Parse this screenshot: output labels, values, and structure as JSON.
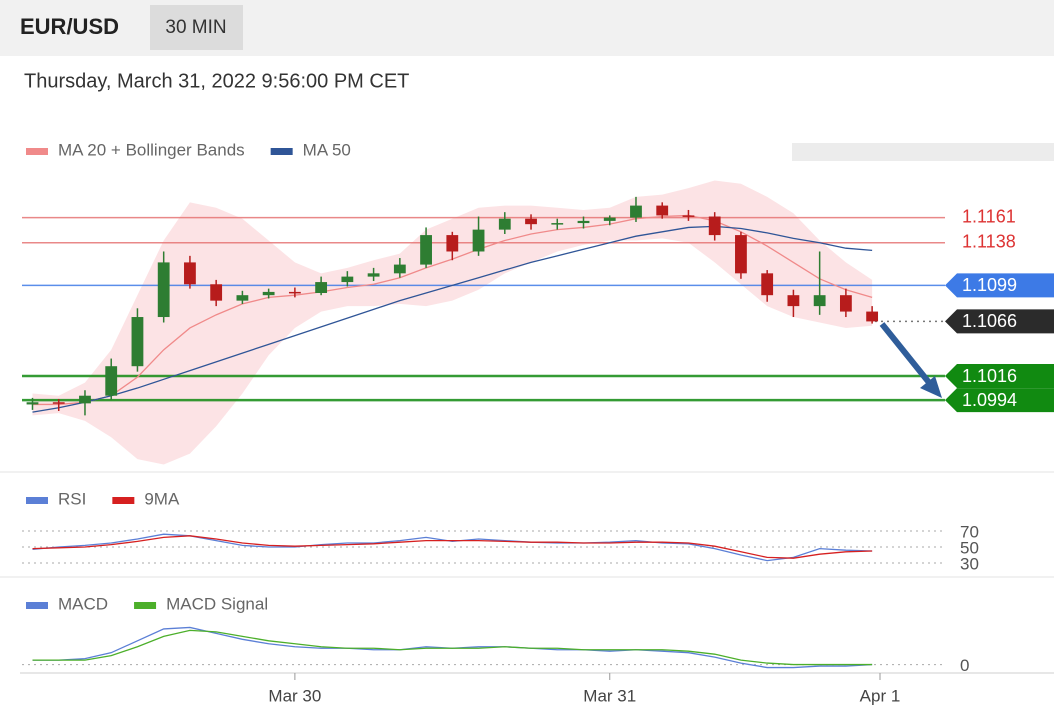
{
  "header": {
    "symbol": "EUR/USD",
    "timeframe": "30 MIN",
    "datetime": "Thursday, March 31, 2022 9:56:00 PM CET"
  },
  "chart_data": [
    {
      "type": "candlestick",
      "x": [
        -20,
        -18,
        -16,
        -14,
        -12,
        -10,
        -8,
        -6,
        -4,
        -2,
        0,
        2,
        4,
        6,
        8,
        10,
        12,
        14,
        16,
        18,
        20,
        22,
        24,
        26,
        28,
        30,
        32,
        34,
        36,
        38,
        40,
        42,
        44
      ],
      "xlim": [
        -20.8,
        44.6
      ],
      "ylim": [
        1.093,
        1.12
      ],
      "up_color": "#2e7d32",
      "down_color": "#b71c1c",
      "candles": [
        {
          "o": 1.099,
          "h": 1.0996,
          "l": 1.0985,
          "c": 1.0992
        },
        {
          "o": 1.0992,
          "h": 1.0995,
          "l": 1.0984,
          "c": 1.0991
        },
        {
          "o": 1.0991,
          "h": 1.1003,
          "l": 1.098,
          "c": 1.0998
        },
        {
          "o": 1.0998,
          "h": 1.1032,
          "l": 1.0994,
          "c": 1.1025
        },
        {
          "o": 1.1025,
          "h": 1.1078,
          "l": 1.102,
          "c": 1.107
        },
        {
          "o": 1.107,
          "h": 1.113,
          "l": 1.1065,
          "c": 1.112
        },
        {
          "o": 1.112,
          "h": 1.1126,
          "l": 1.1096,
          "c": 1.11
        },
        {
          "o": 1.11,
          "h": 1.1104,
          "l": 1.108,
          "c": 1.1085
        },
        {
          "o": 1.1085,
          "h": 1.1094,
          "l": 1.1082,
          "c": 1.109
        },
        {
          "o": 1.109,
          "h": 1.1096,
          "l": 1.1087,
          "c": 1.1093
        },
        {
          "o": 1.1093,
          "h": 1.1097,
          "l": 1.1088,
          "c": 1.1092
        },
        {
          "o": 1.1092,
          "h": 1.1107,
          "l": 1.109,
          "c": 1.1102
        },
        {
          "o": 1.1102,
          "h": 1.1112,
          "l": 1.1098,
          "c": 1.1107
        },
        {
          "o": 1.1107,
          "h": 1.1115,
          "l": 1.1103,
          "c": 1.111
        },
        {
          "o": 1.111,
          "h": 1.1124,
          "l": 1.1106,
          "c": 1.1118
        },
        {
          "o": 1.1118,
          "h": 1.1152,
          "l": 1.1115,
          "c": 1.1145
        },
        {
          "o": 1.1145,
          "h": 1.1148,
          "l": 1.1122,
          "c": 1.113
        },
        {
          "o": 1.113,
          "h": 1.1162,
          "l": 1.1126,
          "c": 1.115
        },
        {
          "o": 1.115,
          "h": 1.1166,
          "l": 1.1146,
          "c": 1.116
        },
        {
          "o": 1.116,
          "h": 1.1164,
          "l": 1.115,
          "c": 1.1155
        },
        {
          "o": 1.1155,
          "h": 1.116,
          "l": 1.115,
          "c": 1.1156
        },
        {
          "o": 1.1156,
          "h": 1.1162,
          "l": 1.1151,
          "c": 1.1158
        },
        {
          "o": 1.1158,
          "h": 1.1163,
          "l": 1.1154,
          "c": 1.1161
        },
        {
          "o": 1.1161,
          "h": 1.118,
          "l": 1.1157,
          "c": 1.1172
        },
        {
          "o": 1.1172,
          "h": 1.1175,
          "l": 1.116,
          "c": 1.1163
        },
        {
          "o": 1.1163,
          "h": 1.1168,
          "l": 1.1158,
          "c": 1.1162
        },
        {
          "o": 1.1162,
          "h": 1.1166,
          "l": 1.114,
          "c": 1.1145
        },
        {
          "o": 1.1145,
          "h": 1.1148,
          "l": 1.1105,
          "c": 1.111
        },
        {
          "o": 1.111,
          "h": 1.1113,
          "l": 1.1084,
          "c": 1.109
        },
        {
          "o": 1.109,
          "h": 1.1095,
          "l": 1.107,
          "c": 1.108
        },
        {
          "o": 1.108,
          "h": 1.113,
          "l": 1.1072,
          "c": 1.109
        },
        {
          "o": 1.109,
          "h": 1.1096,
          "l": 1.107,
          "c": 1.1075
        },
        {
          "o": 1.1075,
          "h": 1.108,
          "l": 1.1064,
          "c": 1.1066
        }
      ],
      "series": [
        {
          "name": "MA 20 + Bollinger Bands",
          "color": "#f08a8a",
          "band_color": "#fbd9dc",
          "values": [
            1.099,
            1.099,
            1.0992,
            1.0998,
            1.1015,
            1.104,
            1.106,
            1.1072,
            1.1082,
            1.1088,
            1.109,
            1.1093,
            1.1097,
            1.11,
            1.1106,
            1.1115,
            1.1123,
            1.1132,
            1.114,
            1.1146,
            1.115,
            1.1152,
            1.1155,
            1.116,
            1.1162,
            1.1163,
            1.1158,
            1.1148,
            1.1135,
            1.112,
            1.1105,
            1.1095,
            1.1088
          ],
          "upper": [
            1.1,
            1.0998,
            1.101,
            1.104,
            1.109,
            1.114,
            1.1175,
            1.117,
            1.116,
            1.114,
            1.112,
            1.111,
            1.1115,
            1.1122,
            1.1128,
            1.115,
            1.116,
            1.117,
            1.1172,
            1.1172,
            1.117,
            1.1168,
            1.117,
            1.118,
            1.1182,
            1.1188,
            1.1195,
            1.1192,
            1.118,
            1.1165,
            1.114,
            1.112,
            1.1104
          ],
          "lower": [
            1.098,
            1.0982,
            1.0975,
            1.096,
            1.094,
            1.0935,
            1.0945,
            1.097,
            1.1,
            1.1035,
            1.106,
            1.1075,
            1.108,
            1.108,
            1.1082,
            1.108,
            1.1085,
            1.1095,
            1.111,
            1.112,
            1.113,
            1.1136,
            1.114,
            1.114,
            1.1142,
            1.1138,
            1.112,
            1.11,
            1.108,
            1.107,
            1.1065,
            1.106,
            1.1062
          ]
        },
        {
          "name": "MA 50",
          "color": "#2f5597",
          "values": [
            1.0983,
            1.0987,
            1.0992,
            1.0998,
            1.1005,
            1.1013,
            1.1021,
            1.1029,
            1.1037,
            1.1045,
            1.1053,
            1.1061,
            1.1069,
            1.1077,
            1.1085,
            1.1092,
            1.1099,
            1.1106,
            1.1113,
            1.112,
            1.1126,
            1.1132,
            1.1138,
            1.1144,
            1.1148,
            1.1152,
            1.1153,
            1.1151,
            1.1147,
            1.1142,
            1.1138,
            1.1133,
            1.1131
          ]
        }
      ],
      "levels": [
        {
          "value": 1.1161,
          "color": "#e57373",
          "label_style": "text",
          "line": "solid"
        },
        {
          "value": 1.1138,
          "color": "#e57373",
          "label_style": "text",
          "line": "solid"
        },
        {
          "value": 1.1099,
          "color": "#3d7ae6",
          "label_style": "tag",
          "line": "solid"
        },
        {
          "value": 1.1066,
          "color": "#2b2b2b",
          "label_style": "tag",
          "line": "dotted"
        },
        {
          "value": 1.1016,
          "color": "#118a11",
          "label_style": "tag",
          "line": "solid"
        },
        {
          "value": 1.0994,
          "color": "#118a11",
          "label_style": "tag",
          "line": "solid"
        }
      ]
    },
    {
      "type": "line",
      "x": [
        -20,
        -18,
        -16,
        -14,
        -12,
        -10,
        -8,
        -6,
        -4,
        -2,
        0,
        2,
        4,
        6,
        8,
        10,
        12,
        14,
        16,
        18,
        20,
        22,
        24,
        26,
        28,
        30,
        32,
        34,
        36,
        38,
        40,
        42,
        44
      ],
      "xlim": [
        -20.8,
        44.6
      ],
      "ylim": [
        15,
        90
      ],
      "yticks": [
        30,
        50,
        70
      ],
      "series": [
        {
          "name": "RSI",
          "color": "#5b7fd6",
          "values": [
            47,
            50,
            52,
            55,
            60,
            66,
            64,
            58,
            52,
            50,
            50,
            53,
            55,
            55,
            58,
            62,
            57,
            60,
            58,
            56,
            55,
            55,
            56,
            58,
            55,
            54,
            48,
            40,
            33,
            37,
            48,
            46,
            45
          ]
        },
        {
          "name": "9MA",
          "color": "#d62020",
          "values": [
            48,
            49,
            50,
            53,
            57,
            62,
            64,
            60,
            55,
            52,
            51,
            52,
            53,
            54,
            56,
            58,
            58,
            58,
            57,
            56,
            56,
            55,
            55,
            56,
            56,
            55,
            51,
            44,
            37,
            36,
            41,
            44,
            45
          ]
        }
      ]
    },
    {
      "type": "line",
      "x": [
        -20,
        -18,
        -16,
        -14,
        -12,
        -10,
        -8,
        -6,
        -4,
        -2,
        0,
        2,
        4,
        6,
        8,
        10,
        12,
        14,
        16,
        18,
        20,
        22,
        24,
        26,
        28,
        30,
        32,
        34,
        36,
        38,
        40,
        42,
        44
      ],
      "xlim": [
        -20.8,
        44.6
      ],
      "ylim": [
        -0.0005,
        0.003
      ],
      "yticks": [
        0
      ],
      "xticks": [
        {
          "value": 0,
          "label": "Mar 30"
        },
        {
          "value": 24,
          "label": "Mar 31"
        },
        {
          "value": 44.6,
          "label": "Apr 1"
        }
      ],
      "series": [
        {
          "name": "MACD",
          "color": "#5b7fd6",
          "values": [
            0.0003,
            0.0003,
            0.0004,
            0.0008,
            0.0016,
            0.0024,
            0.0025,
            0.0021,
            0.0017,
            0.0014,
            0.0012,
            0.0011,
            0.0011,
            0.001,
            0.001,
            0.0012,
            0.0011,
            0.0012,
            0.0012,
            0.0011,
            0.001,
            0.001,
            0.0009,
            0.001,
            0.0009,
            0.0008,
            0.0005,
            0.0001,
            -0.0002,
            -0.0002,
            -0.0001,
            -0.0001,
            0
          ]
        },
        {
          "name": "MACD Signal",
          "color": "#4caf2a",
          "values": [
            0.0003,
            0.0003,
            0.0003,
            0.0006,
            0.0012,
            0.0019,
            0.0023,
            0.0022,
            0.0019,
            0.0016,
            0.0014,
            0.0012,
            0.0011,
            0.0011,
            0.001,
            0.0011,
            0.0011,
            0.0011,
            0.0012,
            0.0011,
            0.0011,
            0.001,
            0.001,
            0.001,
            0.001,
            0.0009,
            0.0007,
            0.0003,
            0.0001,
            0,
            0,
            0,
            0
          ]
        }
      ]
    }
  ]
}
